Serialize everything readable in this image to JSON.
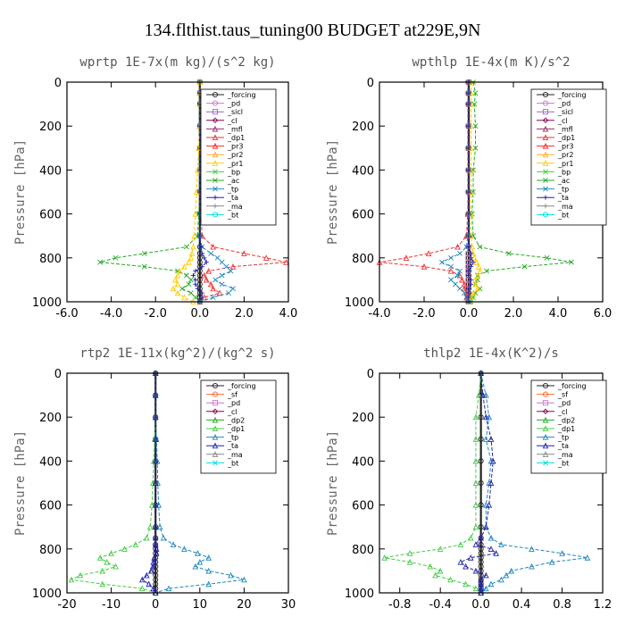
{
  "figure_title": "134.flthist.taus_tuning00  BUDGET at229E,9N",
  "colors": {
    "forcing": "#222222",
    "pd": "#cc77cc",
    "sicl": "#9966cc",
    "cl": "#880055",
    "mfl": "#993366",
    "dp1": "#ee3333",
    "pr3": "#ff2222",
    "pr2": "#ffaa22",
    "pr1": "#ffcc00",
    "bp": "#44cc44",
    "ac": "#22aa22",
    "tp": "#2288bb",
    "ta": "#2222aa",
    "ma": "#888888",
    "bt": "#00dddd",
    "sf": "#ff6633"
  },
  "chart_data": [
    {
      "type": "line",
      "title": "wprtp  1E-7x(m kg)/(s^2 kg)",
      "ylabel": "Pressure [hPa]",
      "xlim": [
        -6,
        4
      ],
      "ylim": [
        1000,
        0
      ],
      "xticks": [
        "-6.0",
        "-4.0",
        "-2.0",
        "0.0",
        "2.0",
        "4.0"
      ],
      "xtick_values": [
        -6,
        -4,
        -2,
        0,
        2,
        4
      ],
      "yticks": [
        "0",
        "200",
        "400",
        "600",
        "800",
        "1000"
      ],
      "ytick_values": [
        0,
        200,
        400,
        600,
        800,
        1000
      ],
      "legend": [
        "_forcing",
        "_pd",
        "_sicl",
        "_cl",
        "_mfl",
        "_dp1",
        "_pr3",
        "_pr2",
        "_pr1",
        "_bp",
        "_ac",
        "_tp",
        "_ta",
        "_ma",
        "_bt"
      ],
      "series_keys": [
        "forcing",
        "pd",
        "sicl",
        "cl",
        "mfl",
        "dp1",
        "pr3",
        "pr2",
        "pr1",
        "bp",
        "ac",
        "tp",
        "ta",
        "ma",
        "bt"
      ],
      "pressure": [
        0,
        50,
        100,
        200,
        300,
        400,
        500,
        600,
        700,
        750,
        780,
        800,
        820,
        840,
        860,
        880,
        900,
        920,
        940,
        960,
        980,
        1000
      ],
      "series": [
        {
          "key": "forcing",
          "values": [
            0,
            0,
            0,
            0,
            0,
            0,
            0,
            0,
            0,
            0,
            0,
            0,
            0,
            0,
            0,
            0,
            0,
            0,
            0,
            0,
            0,
            0
          ]
        },
        {
          "key": "dp1",
          "values": [
            0,
            0,
            0,
            0,
            0,
            0,
            0,
            0.05,
            0.1,
            0.6,
            2.0,
            3.0,
            3.9,
            1.5,
            0.4,
            0.2,
            0.3,
            0.5,
            0.6,
            0.9,
            0.2,
            0
          ]
        },
        {
          "key": "ac",
          "values": [
            0,
            0,
            0,
            0,
            0,
            0,
            0,
            -0.05,
            -0.1,
            -0.6,
            -2.5,
            -3.8,
            -4.5,
            -2.5,
            -1.0,
            -0.6,
            -0.4,
            -0.5,
            -0.8,
            -0.4,
            -0.2,
            0
          ]
        },
        {
          "key": "tp",
          "values": [
            0,
            0,
            0,
            0,
            0,
            0,
            0,
            0,
            0,
            0.1,
            0.5,
            0.8,
            1.0,
            1.2,
            1.4,
            1.0,
            0.7,
            1.0,
            1.5,
            1.3,
            0.6,
            0
          ]
        },
        {
          "key": "pr1",
          "values": [
            0,
            0,
            0,
            0,
            -0.05,
            -0.1,
            -0.15,
            -0.2,
            -0.25,
            -0.3,
            -0.35,
            -0.4,
            -0.5,
            -0.7,
            -0.9,
            -1.0,
            -1.1,
            -1.0,
            -1.2,
            -1.0,
            -0.7,
            -0.3
          ]
        },
        {
          "key": "ta",
          "values": [
            0,
            0,
            0,
            0,
            0,
            0,
            0,
            0,
            0,
            0.05,
            0.1,
            0.2,
            0.3,
            0.1,
            -0.2,
            -0.3,
            -0.2,
            -0.2,
            -0.1,
            0.1,
            0.1,
            0
          ]
        }
      ]
    },
    {
      "type": "line",
      "title": "wpthlp  1E-4x(m K)/s^2",
      "ylabel": "Pressure [hPa]",
      "xlim": [
        -4,
        6
      ],
      "ylim": [
        1000,
        0
      ],
      "xticks": [
        "-4.0",
        "-2.0",
        "0.0",
        "2.0",
        "4.0",
        "6.0"
      ],
      "xtick_values": [
        -4,
        -2,
        0,
        2,
        4,
        6
      ],
      "yticks": [
        "0",
        "200",
        "400",
        "600",
        "800",
        "1000"
      ],
      "ytick_values": [
        0,
        200,
        400,
        600,
        800,
        1000
      ],
      "legend": [
        "_forcing",
        "_pd",
        "_sicl",
        "_cl",
        "_mfl",
        "_dp1",
        "_pr3",
        "_pr2",
        "_pr1",
        "_bp",
        "_ac",
        "_tp",
        "_ta",
        "_ma",
        "_bt"
      ],
      "series_keys": [
        "forcing",
        "pd",
        "sicl",
        "cl",
        "mfl",
        "dp1",
        "pr3",
        "pr2",
        "pr1",
        "bp",
        "ac",
        "tp",
        "ta",
        "ma",
        "bt"
      ],
      "pressure": [
        0,
        50,
        100,
        200,
        300,
        400,
        500,
        600,
        700,
        750,
        780,
        800,
        820,
        840,
        860,
        880,
        900,
        920,
        940,
        960,
        980,
        1000
      ],
      "series": [
        {
          "key": "forcing",
          "values": [
            0,
            0,
            0,
            0,
            0,
            0,
            0,
            0,
            0,
            0,
            0,
            0,
            0,
            0,
            0,
            0,
            0,
            0,
            0,
            0,
            0,
            0
          ]
        },
        {
          "key": "pd",
          "values": [
            -0.05,
            -0.05,
            -0.05,
            -0.05,
            -0.05,
            -0.05,
            -0.05,
            -0.05,
            -0.05,
            -0.05,
            -0.05,
            -0.05,
            -0.05,
            -0.05,
            -0.05,
            -0.05,
            -0.05,
            -0.05,
            -0.05,
            -0.05,
            -0.05,
            -0.05
          ]
        },
        {
          "key": "dp1",
          "values": [
            0,
            0,
            0,
            0,
            0,
            0,
            0,
            -0.05,
            -0.1,
            -0.5,
            -1.8,
            -2.8,
            -4.0,
            -2.0,
            -0.8,
            -0.4,
            -0.3,
            -0.2,
            -0.2,
            -0.1,
            -0.1,
            0
          ]
        },
        {
          "key": "ac",
          "values": [
            0.2,
            0.3,
            0.25,
            0.3,
            0.3,
            0.2,
            0.2,
            0.15,
            0.2,
            0.5,
            1.8,
            3.5,
            4.6,
            2.5,
            0.8,
            0.4,
            0.4,
            0.3,
            0.5,
            0.3,
            0.2,
            0.1
          ]
        },
        {
          "key": "pr1",
          "values": [
            0.1,
            0.1,
            0.1,
            0.1,
            0.1,
            0.1,
            0.1,
            0.1,
            0.1,
            0.15,
            0.2,
            0.25,
            0.35,
            0.45,
            0.5,
            0.4,
            0.3,
            0.3,
            0.4,
            0.2,
            0.1,
            0.05
          ]
        },
        {
          "key": "tp",
          "values": [
            0,
            0,
            0,
            0,
            0,
            0,
            0,
            0,
            -0.05,
            -0.1,
            -0.4,
            -0.8,
            -1.2,
            -0.8,
            -0.4,
            -0.5,
            -0.8,
            -0.6,
            -0.4,
            -0.2,
            -0.1,
            0
          ]
        },
        {
          "key": "ta",
          "values": [
            0,
            0,
            0,
            0,
            0,
            0,
            0,
            0,
            0,
            0,
            0.1,
            0.1,
            0.2,
            0.1,
            0,
            0,
            0.1,
            0.1,
            0,
            0,
            0,
            0
          ]
        }
      ]
    },
    {
      "type": "line",
      "title": "rtp2  1E-11x(kg^2)/(kg^2 s)",
      "ylabel": "Pressure [hPa]",
      "xlim": [
        -20,
        30
      ],
      "ylim": [
        1000,
        0
      ],
      "xticks": [
        "-20",
        "-10",
        "0",
        "10",
        "20",
        "30"
      ],
      "xtick_values": [
        -20,
        -10,
        0,
        10,
        20,
        30
      ],
      "yticks": [
        "0",
        "200",
        "400",
        "600",
        "800",
        "1000"
      ],
      "ytick_values": [
        0,
        200,
        400,
        600,
        800,
        1000
      ],
      "legend": [
        "_forcing",
        "_sf",
        "_pd",
        "_cl",
        "_dp2",
        "_dp1",
        "_tp",
        "_ta",
        "_ma",
        "_bt"
      ],
      "series_keys": [
        "forcing",
        "sf",
        "pd",
        "cl",
        "ac",
        "bp",
        "tp",
        "ta",
        "ma",
        "bt"
      ],
      "pressure": [
        0,
        100,
        200,
        300,
        400,
        500,
        600,
        700,
        750,
        780,
        800,
        820,
        840,
        860,
        880,
        900,
        920,
        940,
        960,
        980,
        1000
      ],
      "series": [
        {
          "key": "forcing",
          "values": [
            0,
            0,
            0,
            0,
            0,
            0,
            0,
            0,
            0,
            0,
            0,
            0,
            0,
            0,
            0,
            0,
            0,
            0,
            0,
            0,
            0
          ]
        },
        {
          "key": "bp",
          "values": [
            0,
            0,
            0,
            -0.2,
            -0.4,
            -0.6,
            -0.8,
            -1.2,
            -2.0,
            -4.5,
            -7.0,
            -10.0,
            -12.5,
            -11.0,
            -9.0,
            -12.0,
            -17.0,
            -19.0,
            -12.0,
            -3.0,
            0
          ]
        },
        {
          "key": "tp",
          "values": [
            0,
            0,
            0,
            0.2,
            0.4,
            0.5,
            0.7,
            1.0,
            1.8,
            4.0,
            6.5,
            9.5,
            12.0,
            10.0,
            9.0,
            12.0,
            17.0,
            20.0,
            12.0,
            3.0,
            0
          ]
        },
        {
          "key": "ta",
          "values": [
            0,
            0,
            0,
            0,
            0,
            0,
            0,
            0,
            0,
            0,
            0.2,
            0.2,
            -0.3,
            -0.5,
            -0.6,
            -1.0,
            -2.0,
            -3.0,
            -1.5,
            -0.5,
            0
          ]
        }
      ]
    },
    {
      "type": "line",
      "title": "thlp2  1E-4x(K^2)/s",
      "ylabel": "Pressure [hPa]",
      "xlim": [
        -1.0,
        1.2
      ],
      "ylim": [
        1000,
        0
      ],
      "xticks": [
        "-0.8",
        "-0.4",
        "0.0",
        "0.4",
        "0.8",
        "1.2"
      ],
      "xtick_values": [
        -0.8,
        -0.4,
        0,
        0.4,
        0.8,
        1.2
      ],
      "yticks": [
        "0",
        "200",
        "400",
        "600",
        "800",
        "1000"
      ],
      "ytick_values": [
        0,
        200,
        400,
        600,
        800,
        1000
      ],
      "legend": [
        "_forcing",
        "_sf",
        "_pd",
        "_cl",
        "_dp2",
        "_dp1",
        "_tp",
        "_ta",
        "_ma",
        "_bt"
      ],
      "series_keys": [
        "forcing",
        "sf",
        "pd",
        "cl",
        "ac",
        "bp",
        "tp",
        "ta",
        "ma",
        "bt"
      ],
      "pressure": [
        0,
        100,
        200,
        300,
        400,
        500,
        600,
        700,
        750,
        780,
        800,
        820,
        840,
        860,
        880,
        900,
        920,
        940,
        960,
        980,
        1000
      ],
      "series": [
        {
          "key": "forcing",
          "values": [
            0,
            0,
            0,
            0,
            0,
            0,
            0,
            0,
            0,
            0,
            0,
            0,
            0,
            0,
            0,
            0,
            0,
            0,
            0,
            0,
            0
          ]
        },
        {
          "key": "bp",
          "values": [
            0,
            -0.02,
            -0.05,
            -0.05,
            -0.05,
            -0.05,
            -0.05,
            -0.05,
            -0.1,
            -0.2,
            -0.4,
            -0.7,
            -0.95,
            -0.7,
            -0.5,
            -0.4,
            -0.45,
            -0.3,
            -0.15,
            -0.05,
            0
          ]
        },
        {
          "key": "tp",
          "values": [
            0,
            0.05,
            0.08,
            0.05,
            0.1,
            0.08,
            0.05,
            0.05,
            0.1,
            0.2,
            0.5,
            0.8,
            1.05,
            0.7,
            0.5,
            0.3,
            0.25,
            0.2,
            0.1,
            0.05,
            0
          ]
        },
        {
          "key": "ta",
          "values": [
            0,
            0.02,
            0.05,
            0.1,
            0.12,
            0.1,
            0.08,
            0.05,
            0,
            -0.05,
            0.1,
            0.15,
            -0.1,
            -0.2,
            -0.15,
            -0.05,
            0.05,
            0,
            0,
            0,
            0
          ]
        }
      ]
    }
  ]
}
